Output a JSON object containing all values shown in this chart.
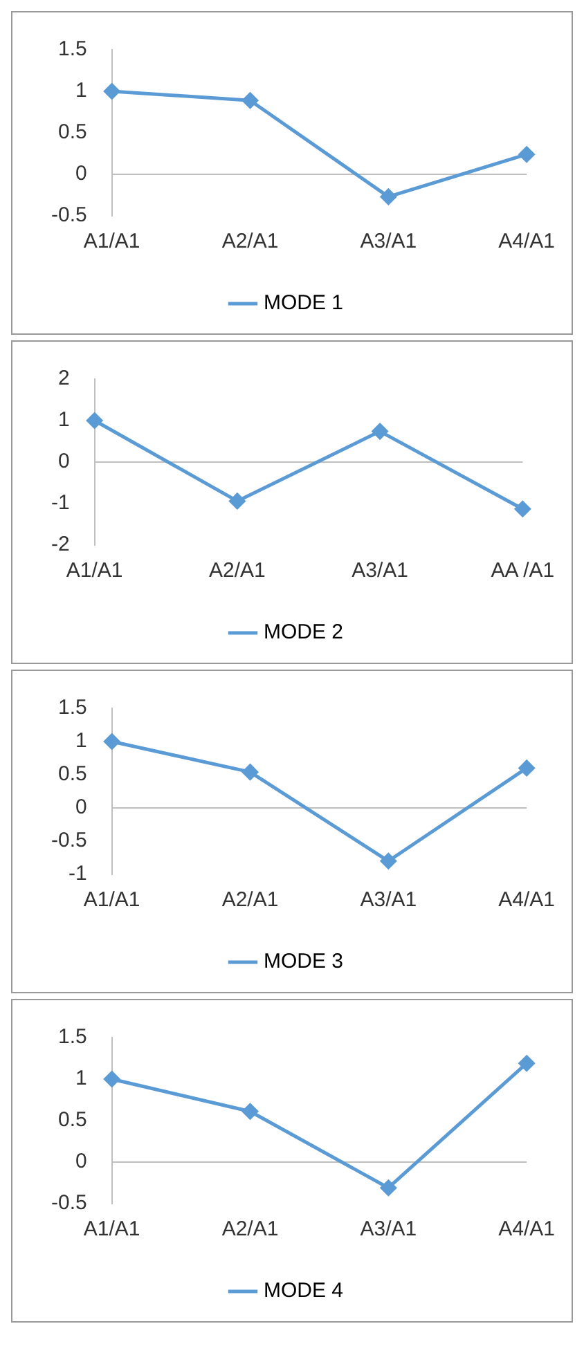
{
  "chart_data": [
    {
      "type": "line",
      "categories": [
        "A1/A1",
        "A2/A1",
        "A3/A1",
        "A4/A1"
      ],
      "series": [
        {
          "name": "MODE 1",
          "color": "#5b9bd5",
          "values": [
            1,
            0.89,
            -0.27,
            0.24
          ]
        }
      ],
      "ref_lines": [
        {
          "axis": "y",
          "value": 0,
          "color": "#bfbfbf"
        }
      ],
      "ylim": [
        -0.5,
        1.5
      ],
      "yticks": [
        -0.5,
        0,
        0.5,
        1,
        1.5
      ],
      "grid": false,
      "legend": "bottom",
      "marker": "diamond"
    },
    {
      "type": "line",
      "categories": [
        "A1/A1",
        "A2/A1",
        "A3/A1",
        "AA /A1"
      ],
      "series": [
        {
          "name": "MODE 2",
          "color": "#5b9bd5",
          "values": [
            1,
            -0.94,
            0.74,
            -1.13
          ]
        }
      ],
      "ref_lines": [
        {
          "axis": "y",
          "value": 0,
          "color": "#bfbfbf"
        }
      ],
      "ylim": [
        -2,
        2
      ],
      "yticks": [
        -2,
        -1,
        0,
        1,
        2
      ],
      "grid": false,
      "legend": "bottom",
      "marker": "diamond"
    },
    {
      "type": "line",
      "categories": [
        "A1/A1",
        "A2/A1",
        "A3/A1",
        "A4/A1"
      ],
      "series": [
        {
          "name": "MODE 3",
          "color": "#5b9bd5",
          "values": [
            1,
            0.54,
            -0.8,
            0.6
          ]
        }
      ],
      "ref_lines": [
        {
          "axis": "y",
          "value": 0,
          "color": "#bfbfbf"
        }
      ],
      "ylim": [
        -1,
        1.5
      ],
      "yticks": [
        -1,
        -0.5,
        0,
        0.5,
        1,
        1.5
      ],
      "grid": false,
      "legend": "bottom",
      "marker": "diamond"
    },
    {
      "type": "line",
      "categories": [
        "A1/A1",
        "A2/A1",
        "A3/A1",
        "A4/A1"
      ],
      "series": [
        {
          "name": "MODE 4",
          "color": "#5b9bd5",
          "values": [
            1,
            0.61,
            -0.31,
            1.19
          ]
        }
      ],
      "ref_lines": [
        {
          "axis": "y",
          "value": 0,
          "color": "#bfbfbf"
        }
      ],
      "ylim": [
        -0.5,
        1.5
      ],
      "yticks": [
        -0.5,
        0,
        0.5,
        1,
        1.5
      ],
      "grid": false,
      "legend": "bottom",
      "marker": "diamond"
    }
  ]
}
